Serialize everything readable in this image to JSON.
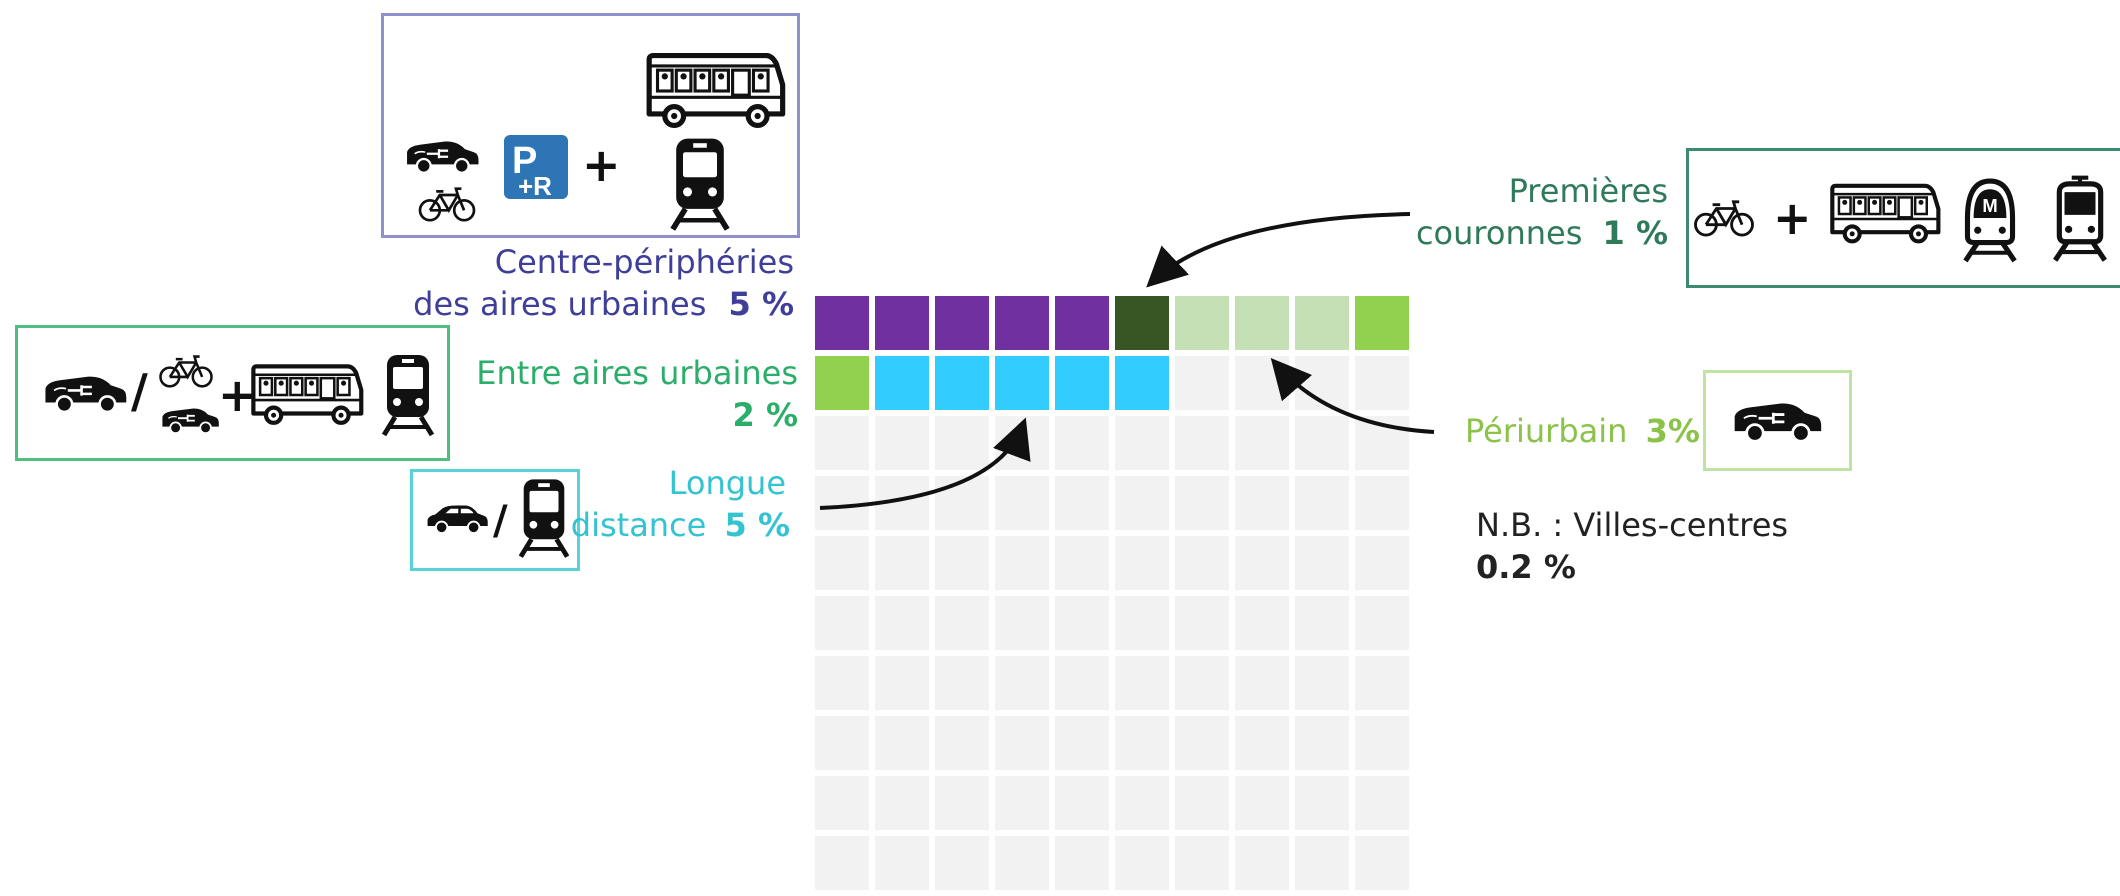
{
  "colors": {
    "centre_peripherie": "#7030a0",
    "premieres_couronnes": "#375623",
    "periurbain_light": "#c5e0b4",
    "periurbain_bright": "#92d050",
    "entre_aires": "#92d050",
    "longue_distance": "#33ccff",
    "empty": "#f2f2f2",
    "box_purple": "#8f90cc",
    "box_green": "#4fbf7f",
    "box_teal": "#3e8a70",
    "box_cyan": "#55d3d6",
    "box_lightgreen": "#bfe3a3"
  },
  "segments": [
    {
      "id": "centre-peripherie",
      "line1": "Centre-périphéries",
      "line2": "des aires urbaines",
      "value": "5 %",
      "color": "#3f3f9a",
      "value_color": "#3f3f9a"
    },
    {
      "id": "entre-aires",
      "line1": "Entre aires urbaines",
      "value": "2 %",
      "color": "#2aae6a",
      "value_color": "#2aae6a"
    },
    {
      "id": "longue-distance",
      "line1": "Longue",
      "line2": "distance",
      "value": "5 %",
      "color": "#33cccc",
      "value_color": "#22bcd0"
    },
    {
      "id": "premieres-couronnes",
      "line1": "Premières",
      "line2": "couronnes",
      "value": "1 %",
      "color": "#2f7a5a",
      "value_color": "#2f7a5a"
    },
    {
      "id": "periurbain",
      "line1": "Périurbain",
      "value": "3%",
      "color": "#9acd6b",
      "value_color": "#8bc34a"
    }
  ],
  "note": {
    "line1": "N.B. : Villes-centres",
    "value": "0.2 %"
  },
  "symbols": {
    "plus": "+",
    "slash": "/"
  },
  "waffle": {
    "cells_per_row": 10,
    "rows": [
      [
        "centre_peripherie",
        "centre_peripherie",
        "centre_peripherie",
        "centre_peripherie",
        "centre_peripherie",
        "premieres_couronnes",
        "periurbain_light",
        "periurbain_light",
        "periurbain_light",
        "periurbain_bright"
      ],
      [
        "entre_aires",
        "longue_distance",
        "longue_distance",
        "longue_distance",
        "longue_distance",
        "longue_distance",
        "empty",
        "empty",
        "empty",
        "empty"
      ],
      [
        "empty",
        "empty",
        "empty",
        "empty",
        "empty",
        "empty",
        "empty",
        "empty",
        "empty",
        "empty"
      ],
      [
        "empty",
        "empty",
        "empty",
        "empty",
        "empty",
        "empty",
        "empty",
        "empty",
        "empty",
        "empty"
      ],
      [
        "empty",
        "empty",
        "empty",
        "empty",
        "empty",
        "empty",
        "empty",
        "empty",
        "empty",
        "empty"
      ],
      [
        "empty",
        "empty",
        "empty",
        "empty",
        "empty",
        "empty",
        "empty",
        "empty",
        "empty",
        "empty"
      ],
      [
        "empty",
        "empty",
        "empty",
        "empty",
        "empty",
        "empty",
        "empty",
        "empty",
        "empty",
        "empty"
      ],
      [
        "empty",
        "empty",
        "empty",
        "empty",
        "empty",
        "empty",
        "empty",
        "empty",
        "empty",
        "empty"
      ],
      [
        "empty",
        "empty",
        "empty",
        "empty",
        "empty",
        "empty",
        "empty",
        "empty",
        "empty",
        "empty"
      ],
      [
        "empty",
        "empty",
        "empty",
        "empty",
        "empty",
        "empty",
        "empty",
        "empty",
        "empty",
        "empty"
      ]
    ]
  },
  "icons": {
    "purple_box": [
      "electric-car-icon",
      "bicycle-icon",
      "park-and-ride-icon",
      "bus-icon",
      "train-icon"
    ],
    "green_box": [
      "electric-car-icon",
      "bicycle-icon",
      "small-electric-car-icon",
      "bus-icon",
      "train-icon"
    ],
    "cyan_box": [
      "car-icon",
      "train-icon"
    ],
    "teal_box": [
      "bicycle-icon",
      "bus-icon",
      "metro-icon",
      "tram-icon"
    ],
    "lightgreen_box": [
      "electric-car-icon"
    ]
  },
  "park_and_ride": {
    "top": "P",
    "bottom": "+R"
  },
  "metro_letter": "M"
}
